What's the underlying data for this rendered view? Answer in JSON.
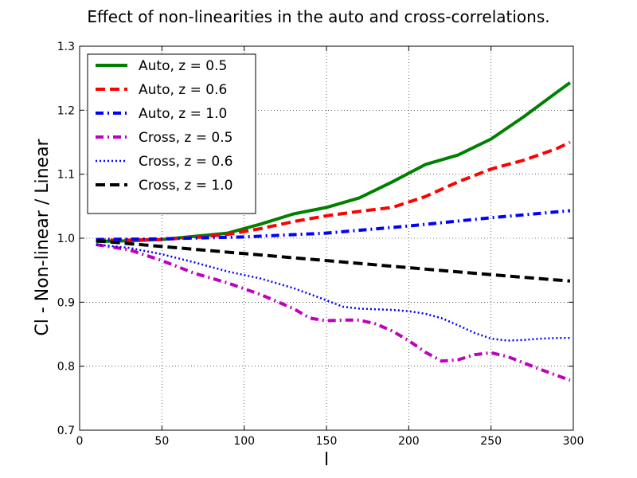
{
  "chart_data": {
    "type": "line",
    "title": "Effect of non-linearities in the auto and cross-correlations.",
    "xlabel": "l",
    "ylabel": "Cl - Non-linear / Linear",
    "xlim": [
      0,
      300
    ],
    "ylim": [
      0.7,
      1.3
    ],
    "xticks": [
      0,
      50,
      100,
      150,
      200,
      250,
      300
    ],
    "xtick_labels": [
      "0",
      "50",
      "100",
      "150",
      "200",
      "250",
      "300"
    ],
    "yticks": [
      0.7,
      0.8,
      0.9,
      1.0,
      1.1,
      1.2,
      1.3
    ],
    "ytick_labels": [
      "0.7",
      "0.8",
      "0.9",
      "1.0",
      "1.1",
      "1.2",
      "1.3"
    ],
    "grid": true,
    "legend_position": "top-left",
    "series": [
      {
        "name": "Auto, z = 0.5",
        "color": "#008000",
        "style": "solid",
        "x": [
          10,
          30,
          50,
          70,
          90,
          110,
          130,
          150,
          170,
          190,
          210,
          230,
          250,
          270,
          290,
          298
        ],
        "y": [
          0.995,
          0.996,
          0.998,
          1.003,
          1.008,
          1.022,
          1.038,
          1.048,
          1.063,
          1.088,
          1.115,
          1.13,
          1.155,
          1.19,
          1.228,
          1.243
        ]
      },
      {
        "name": "Auto, z = 0.6",
        "color": "#ff0000",
        "style": "dashed",
        "x": [
          10,
          30,
          50,
          70,
          90,
          110,
          130,
          150,
          170,
          190,
          210,
          230,
          250,
          270,
          290,
          298
        ],
        "y": [
          0.997,
          0.997,
          0.998,
          1.001,
          1.006,
          1.015,
          1.026,
          1.035,
          1.042,
          1.048,
          1.065,
          1.088,
          1.108,
          1.122,
          1.14,
          1.15
        ]
      },
      {
        "name": "Auto, z = 1.0",
        "color": "#0000ff",
        "style": "dashdot",
        "x": [
          10,
          50,
          100,
          150,
          200,
          250,
          298
        ],
        "y": [
          0.998,
          0.999,
          1.002,
          1.008,
          1.019,
          1.032,
          1.043
        ]
      },
      {
        "name": "Cross, z = 0.5",
        "color": "#bf00bf",
        "style": "dashdot",
        "x": [
          10,
          30,
          50,
          70,
          90,
          110,
          130,
          140,
          150,
          160,
          170,
          180,
          190,
          200,
          210,
          220,
          230,
          240,
          250,
          260,
          270,
          280,
          298
        ],
        "y": [
          0.99,
          0.982,
          0.965,
          0.945,
          0.93,
          0.912,
          0.89,
          0.875,
          0.871,
          0.872,
          0.872,
          0.866,
          0.855,
          0.84,
          0.822,
          0.808,
          0.81,
          0.818,
          0.821,
          0.815,
          0.805,
          0.795,
          0.778
        ]
      },
      {
        "name": "Cross, z = 0.6",
        "color": "#0000ff",
        "style": "dotted",
        "x": [
          10,
          30,
          50,
          70,
          90,
          110,
          130,
          150,
          160,
          170,
          180,
          190,
          200,
          210,
          220,
          230,
          240,
          250,
          260,
          270,
          280,
          290,
          298
        ],
        "y": [
          0.99,
          0.985,
          0.975,
          0.962,
          0.948,
          0.937,
          0.922,
          0.903,
          0.893,
          0.89,
          0.889,
          0.888,
          0.886,
          0.882,
          0.875,
          0.864,
          0.852,
          0.843,
          0.84,
          0.841,
          0.843,
          0.844,
          0.844
        ]
      },
      {
        "name": "Cross, z = 1.0",
        "color": "#000000",
        "style": "dashed",
        "x": [
          10,
          50,
          100,
          150,
          200,
          250,
          298
        ],
        "y": [
          0.996,
          0.987,
          0.976,
          0.965,
          0.954,
          0.943,
          0.933
        ]
      }
    ]
  }
}
